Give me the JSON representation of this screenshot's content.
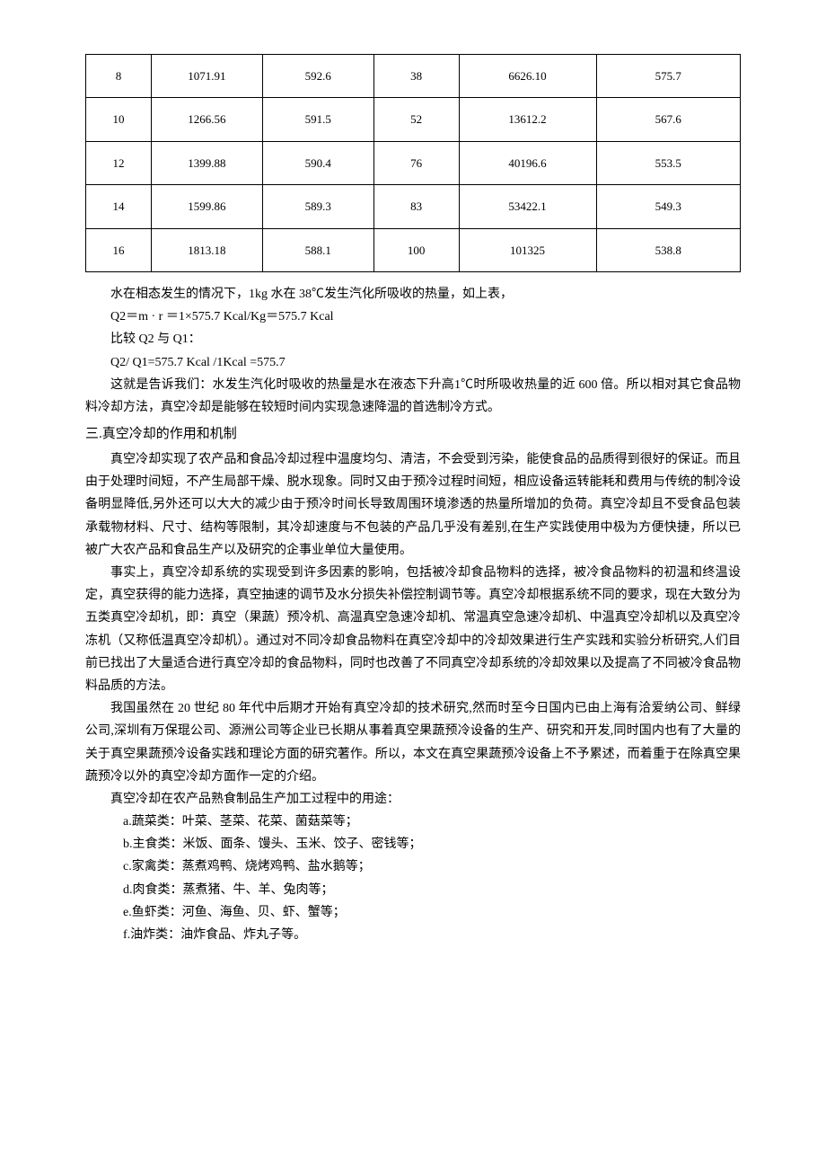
{
  "table": {
    "rows": [
      [
        "8",
        "1071.91",
        "592.6",
        "38",
        "6626.10",
        "575.7"
      ],
      [
        "10",
        "1266.56",
        "591.5",
        "52",
        "13612.2",
        "567.6"
      ],
      [
        "12",
        "1399.88",
        "590.4",
        "76",
        "40196.6",
        "553.5"
      ],
      [
        "14",
        "1599.86",
        "589.3",
        "83",
        "53422.1",
        "549.3"
      ],
      [
        "16",
        "1813.18",
        "588.1",
        "100",
        "101325",
        "538.8"
      ]
    ]
  },
  "content": {
    "p1": "水在相态发生的情况下，1kg 水在 38℃发生汽化所吸收的热量，如上表，",
    "f1": "Q2＝m · r ＝1×575.7 Kcal/Kg＝575.7 Kcal",
    "f2": "比较 Q2 与 Q1：",
    "f3": "Q2/ Q1=575.7 Kcal /1Kcal =575.7",
    "p2": "这就是告诉我们：水发生汽化时吸收的热量是水在液态下升高1℃时所吸收热量的近 600 倍。所以相对其它食品物料冷却方法，真空冷却是能够在较短时间内实现急速降温的首选制冷方式。",
    "section": "三.真空冷却的作用和机制",
    "p3": "真空冷却实现了农产品和食品冷却过程中温度均匀、清洁，不会受到污染，能使食品的品质得到很好的保证。而且由于处理时间短，不产生局部干燥、脱水现象。同时又由于预冷过程时间短，相应设备运转能耗和费用与传统的制冷设备明显降低,另外还可以大大的减少由于预冷时间长导致周围环境渗透的热量所增加的负荷。真空冷却且不受食品包装承载物材料、尺寸、结构等限制，其冷却速度与不包装的产品几乎没有差别,在生产实践使用中极为方便快捷，所以已被广大农产品和食品生产以及研究的企事业单位大量使用。",
    "p4": "事实上，真空冷却系统的实现受到许多因素的影响，包括被冷却食品物料的选择，被冷食品物料的初温和终温设定，真空获得的能力选择，真空抽速的调节及水分损失补偿控制调节等。真空冷却根据系统不同的要求，现在大致分为五类真空冷却机，即：真空（果蔬）预冷机、高温真空急速冷却机、常温真空急速冷却机、中温真空冷却机以及真空冷冻机（又称低温真空冷却机）。通过对不同冷却食品物料在真空冷却中的冷却效果进行生产实践和实验分析研究,人们目前已找出了大量适合进行真空冷却的食品物料，同时也改善了不同真空冷却系统的冷却效果以及提高了不同被冷食品物料品质的方法。",
    "p5": "我国虽然在 20 世纪 80 年代中后期才开始有真空冷却的技术研究,然而时至今日国内已由上海有洽爱纳公司、鲜绿公司,深圳有万保琨公司、源洲公司等企业已长期从事着真空果蔬预冷设备的生产、研究和开发,同时国内也有了大量的关于真空果蔬预冷设备实践和理论方面的研究著作。所以，本文在真空果蔬预冷设备上不予累述，而着重于在除真空果蔬预冷以外的真空冷却方面作一定的介绍。",
    "p6": "真空冷却在农产品熟食制品生产加工过程中的用途：",
    "list": {
      "a": "a.蔬菜类：叶菜、茎菜、花菜、菌菇菜等；",
      "b": "b.主食类：米饭、面条、馒头、玉米、饺子、密钱等；",
      "c": "c.家禽类：蒸煮鸡鸭、烧烤鸡鸭、盐水鹅等；",
      "d": "d.肉食类：蒸煮猪、牛、羊、兔肉等；",
      "e": "e.鱼虾类：河鱼、海鱼、贝、虾、蟹等；",
      "f": "f.油炸类：油炸食品、炸丸子等。"
    }
  }
}
